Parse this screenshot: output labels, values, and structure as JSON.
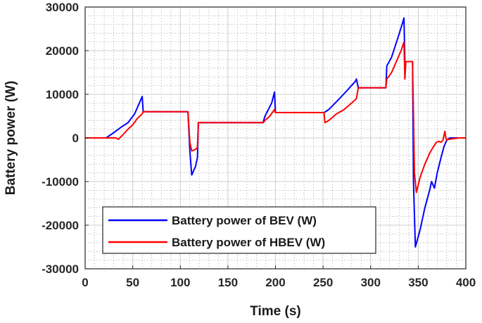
{
  "chart_data": {
    "type": "line",
    "xlabel": "Time (s)",
    "ylabel": "Battery power (W)",
    "xlim": [
      0,
      400
    ],
    "ylim": [
      -30000,
      30000
    ],
    "xticks": [
      "0",
      "50",
      "100",
      "150",
      "200",
      "250",
      "300",
      "350",
      "400"
    ],
    "yticks": [
      "-30000",
      "-20000",
      "-10000",
      "0",
      "10000",
      "20000",
      "30000"
    ],
    "grid": true,
    "minor_grid": true,
    "legend_position": "lower-left",
    "series": [
      {
        "name": "Battery power of BEV (W)",
        "color": "#0000ff",
        "points": [
          [
            0,
            0
          ],
          [
            22,
            0
          ],
          [
            30,
            1200
          ],
          [
            38,
            2500
          ],
          [
            45,
            3500
          ],
          [
            52,
            5500
          ],
          [
            58,
            8500
          ],
          [
            60,
            9500
          ],
          [
            61,
            6000
          ],
          [
            108,
            6000
          ],
          [
            110,
            -3000
          ],
          [
            112,
            -8500
          ],
          [
            116,
            -6500
          ],
          [
            118,
            -4500
          ],
          [
            119,
            3500
          ],
          [
            187,
            3500
          ],
          [
            189,
            5000
          ],
          [
            196,
            8000
          ],
          [
            199,
            10500
          ],
          [
            200,
            5800
          ],
          [
            251,
            5800
          ],
          [
            256,
            6500
          ],
          [
            265,
            8500
          ],
          [
            275,
            10800
          ],
          [
            284,
            13000
          ],
          [
            285,
            13500
          ],
          [
            287,
            11500
          ],
          [
            316,
            11500
          ],
          [
            317,
            16500
          ],
          [
            322,
            18500
          ],
          [
            328,
            22500
          ],
          [
            333,
            26000
          ],
          [
            335,
            27500
          ],
          [
            336,
            17500
          ],
          [
            344,
            17500
          ],
          [
            345,
            -10000
          ],
          [
            347,
            -25000
          ],
          [
            352,
            -21000
          ],
          [
            357,
            -16000
          ],
          [
            362,
            -12000
          ],
          [
            364,
            -10000
          ],
          [
            367,
            -11500
          ],
          [
            370,
            -8000
          ],
          [
            374,
            -4500
          ],
          [
            377,
            -2000
          ],
          [
            380,
            -500
          ],
          [
            383,
            0
          ],
          [
            400,
            0
          ]
        ]
      },
      {
        "name": "Battery power of HBEV (W)",
        "color": "#ff0000",
        "points": [
          [
            0,
            0
          ],
          [
            32,
            0
          ],
          [
            35,
            -300
          ],
          [
            40,
            800
          ],
          [
            45,
            2000
          ],
          [
            50,
            3000
          ],
          [
            55,
            4500
          ],
          [
            60,
            5500
          ],
          [
            61,
            6000
          ],
          [
            108,
            6000
          ],
          [
            110,
            -1000
          ],
          [
            112,
            -3000
          ],
          [
            117,
            -2500
          ],
          [
            118,
            -2000
          ],
          [
            119,
            3500
          ],
          [
            187,
            3500
          ],
          [
            189,
            4000
          ],
          [
            194,
            5000
          ],
          [
            199,
            6500
          ],
          [
            200,
            5800
          ],
          [
            251,
            5800
          ],
          [
            252,
            3500
          ],
          [
            256,
            4000
          ],
          [
            264,
            5500
          ],
          [
            272,
            6500
          ],
          [
            280,
            8000
          ],
          [
            285,
            9000
          ],
          [
            287,
            11500
          ],
          [
            316,
            11500
          ],
          [
            317,
            13500
          ],
          [
            322,
            15000
          ],
          [
            327,
            17500
          ],
          [
            332,
            20000
          ],
          [
            335,
            22000
          ],
          [
            336,
            13500
          ],
          [
            337,
            17500
          ],
          [
            344,
            17500
          ],
          [
            346,
            -8000
          ],
          [
            348,
            -12500
          ],
          [
            352,
            -9000
          ],
          [
            357,
            -6000
          ],
          [
            362,
            -3500
          ],
          [
            366,
            -2000
          ],
          [
            369,
            -1000
          ],
          [
            372,
            -800
          ],
          [
            374,
            -1000
          ],
          [
            376,
            -500
          ],
          [
            378,
            1500
          ],
          [
            379,
            0
          ],
          [
            380,
            -500
          ],
          [
            382,
            -300
          ],
          [
            386,
            -200
          ],
          [
            392,
            0
          ],
          [
            400,
            0
          ]
        ]
      }
    ]
  }
}
